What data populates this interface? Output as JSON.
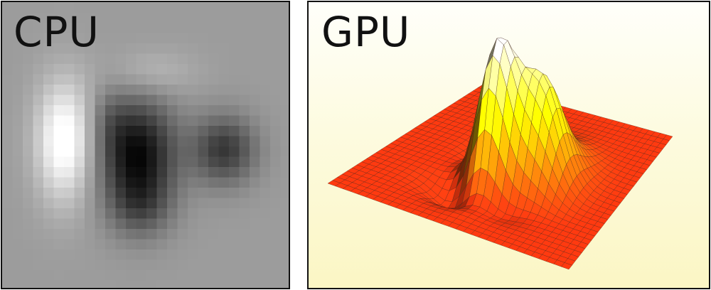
{
  "cpu_panel": {
    "label": "CPU",
    "background_color": "#9c9c9c",
    "icon": "pixelated-grayscale-heatmap"
  },
  "gpu_panel": {
    "label": "GPU",
    "surface_low_color": "#ff3a10",
    "surface_mid_color": "#f2f200",
    "surface_high_color": "#ffffff",
    "icon": "3d-mesh-surface"
  }
}
